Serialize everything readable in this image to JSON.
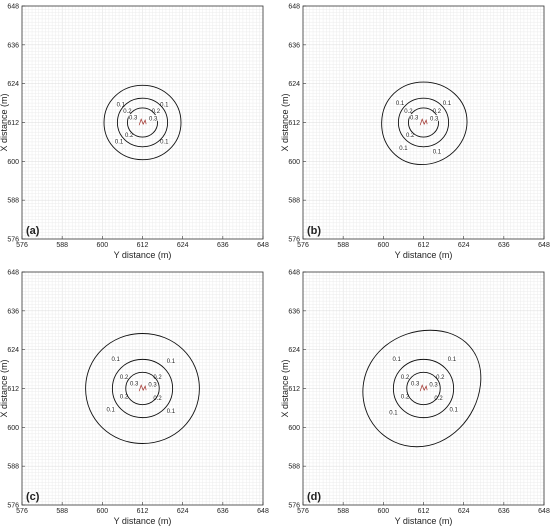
{
  "chart_data": [
    {
      "type": "contour",
      "panel_label": "(a)",
      "xlabel": "Y distance (m)",
      "ylabel": "X distance (m)",
      "xlim": [
        576,
        648
      ],
      "ylim": [
        576,
        648
      ],
      "xticks": [
        576,
        588,
        600,
        612,
        624,
        636,
        648
      ],
      "yticks": [
        576,
        588,
        600,
        612,
        624,
        636,
        648
      ],
      "grid": true,
      "contours": [
        {
          "level": "0.1",
          "points": [
            [
              612,
              623.5
            ],
            [
              600.5,
              612
            ],
            [
              612,
              600.5
            ],
            [
              623.5,
              612
            ]
          ],
          "labels": [
            [
              605.5,
              617.5
            ],
            [
              618.5,
              617.5
            ],
            [
              605,
              606
            ],
            [
              618.5,
              606
            ]
          ]
        },
        {
          "level": "0.2",
          "points": [
            [
              612,
              619.5
            ],
            [
              604.5,
              612
            ],
            [
              612,
              604.5
            ],
            [
              619.5,
              612
            ]
          ],
          "labels": [
            [
              607.5,
              615.5
            ],
            [
              616,
              615.5
            ],
            [
              608,
              608
            ]
          ]
        },
        {
          "level": "0.3",
          "points": [
            [
              612,
              616.5
            ],
            [
              607.5,
              612
            ],
            [
              612,
              607.5
            ],
            [
              616.5,
              612
            ]
          ],
          "labels": [
            [
              609.2,
              613.5
            ],
            [
              615.2,
              613.2
            ]
          ]
        }
      ],
      "source": [
        611.9,
        612.1
      ]
    },
    {
      "type": "contour",
      "panel_label": "(b)",
      "xlabel": "Y distance (m)",
      "ylabel": "X distance (m)",
      "xlim": [
        576,
        648
      ],
      "ylim": [
        576,
        648
      ],
      "xticks": [
        576,
        588,
        600,
        612,
        624,
        636,
        648
      ],
      "yticks": [
        576,
        588,
        600,
        612,
        624,
        636,
        648
      ],
      "grid": true,
      "contours": [
        {
          "level": "0.1",
          "points": [
            [
              612,
              624.5
            ],
            [
              599.5,
              612
            ],
            [
              611.5,
              599
            ],
            [
              625,
              612
            ]
          ],
          "labels": [
            [
              605,
              618
            ],
            [
              619,
              618
            ],
            [
              606,
              604
            ],
            [
              616,
              603
            ]
          ]
        },
        {
          "level": "0.2",
          "points": [
            [
              612,
              619.5
            ],
            [
              604.5,
              612
            ],
            [
              612,
              604.5
            ],
            [
              619.5,
              612
            ]
          ],
          "labels": [
            [
              607.5,
              615.5
            ],
            [
              616,
              615.5
            ],
            [
              608,
              608
            ]
          ]
        },
        {
          "level": "0.3",
          "points": [
            [
              612,
              616.5
            ],
            [
              607.5,
              612
            ],
            [
              612,
              607.5
            ],
            [
              616.5,
              612
            ]
          ],
          "labels": [
            [
              609.2,
              613.5
            ],
            [
              615.2,
              613.2
            ]
          ]
        }
      ],
      "source": [
        611.9,
        612.1
      ]
    },
    {
      "type": "contour",
      "panel_label": "(c)",
      "xlabel": "Y distance (m)",
      "ylabel": "X distance (m)",
      "xlim": [
        576,
        648
      ],
      "ylim": [
        576,
        648
      ],
      "xticks": [
        576,
        588,
        600,
        612,
        624,
        636,
        648
      ],
      "yticks": [
        576,
        588,
        600,
        612,
        624,
        636,
        648
      ],
      "grid": true,
      "contours": [
        {
          "level": "0.1",
          "points": [
            [
              612,
              629
            ],
            [
              595,
              612
            ],
            [
              612,
              595
            ],
            [
              629,
              612
            ]
          ],
          "labels": [
            [
              604,
              621
            ],
            [
              620.5,
              620.5
            ],
            [
              602.5,
              605.5
            ],
            [
              620.5,
              605
            ]
          ]
        },
        {
          "level": "0.2",
          "points": [
            [
              612,
              621
            ],
            [
              603,
              612
            ],
            [
              612,
              603
            ],
            [
              621,
              612
            ]
          ],
          "labels": [
            [
              606.5,
              615.5
            ],
            [
              616.5,
              615.5
            ],
            [
              606.5,
              609.5
            ],
            [
              616.5,
              609
            ]
          ]
        },
        {
          "level": "0.3",
          "points": [
            [
              612,
              617
            ],
            [
              607,
              612
            ],
            [
              612,
              607
            ],
            [
              617,
              612
            ]
          ],
          "labels": [
            [
              609.5,
              613.5
            ],
            [
              615,
              613.2
            ]
          ]
        }
      ],
      "source": [
        611.9,
        612.1
      ]
    },
    {
      "type": "contour",
      "panel_label": "(d)",
      "xlabel": "Y distance (m)",
      "ylabel": "X distance (m)",
      "xlim": [
        576,
        648
      ],
      "ylim": [
        576,
        648
      ],
      "xticks": [
        576,
        588,
        600,
        612,
        624,
        636,
        648
      ],
      "yticks": [
        576,
        588,
        600,
        612,
        624,
        636,
        648
      ],
      "grid": true,
      "contours": [
        {
          "level": "0.1",
          "points": [
            [
              614,
              630
            ],
            [
              594,
              613
            ],
            [
              610,
              594
            ],
            [
              629,
              613
            ]
          ],
          "labels": [
            [
              604,
              621
            ],
            [
              620.5,
              621
            ],
            [
              603,
              604.5
            ],
            [
              621,
              605.5
            ]
          ]
        },
        {
          "level": "0.2",
          "points": [
            [
              612,
              621
            ],
            [
              603,
              612
            ],
            [
              612,
              603
            ],
            [
              621,
              612
            ]
          ],
          "labels": [
            [
              606.5,
              615.5
            ],
            [
              617,
              615.5
            ],
            [
              606.5,
              609.5
            ],
            [
              616.5,
              609
            ]
          ]
        },
        {
          "level": "0.3",
          "points": [
            [
              612,
              617
            ],
            [
              607,
              612
            ],
            [
              612,
              607
            ],
            [
              617,
              612
            ]
          ],
          "labels": [
            [
              609.5,
              613.5
            ],
            [
              615,
              613.2
            ]
          ]
        }
      ],
      "source": [
        611.9,
        612.1
      ]
    }
  ]
}
